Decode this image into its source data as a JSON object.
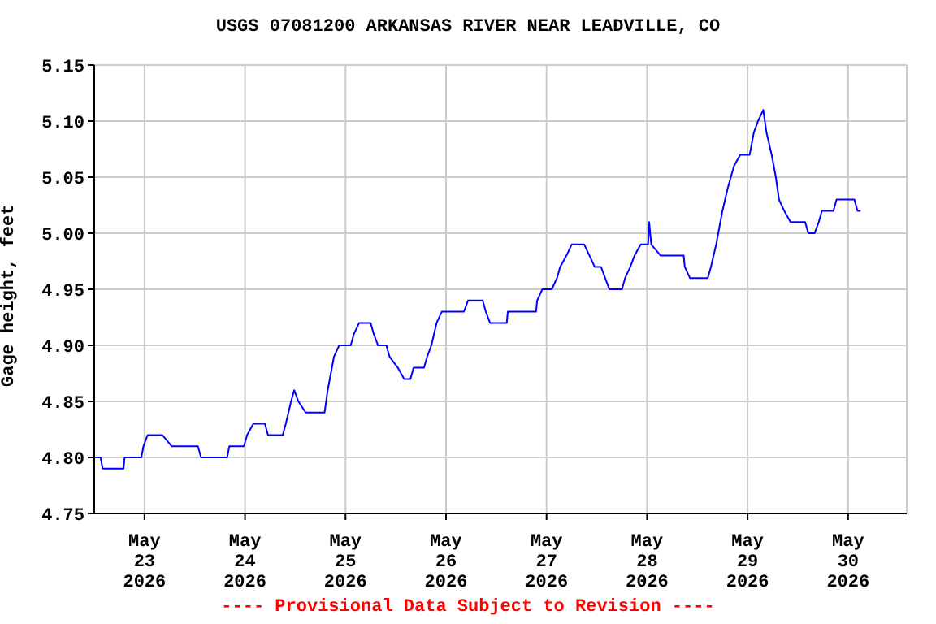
{
  "chart_data": {
    "type": "line",
    "title": "USGS 07081200 ARKANSAS RIVER NEAR LEADVILLE, CO",
    "ylabel": "Gage height, feet",
    "annotations": [
      "---- Provisional Data Subject to Revision ----"
    ],
    "xlim": [
      "2026-05-22T12:00",
      "2026-05-30T14:00"
    ],
    "xticks": [
      {
        "value": "2026-05-23",
        "label": "May\n23\n2026"
      },
      {
        "value": "2026-05-24",
        "label": "May\n24\n2026"
      },
      {
        "value": "2026-05-25",
        "label": "May\n25\n2026"
      },
      {
        "value": "2026-05-26",
        "label": "May\n26\n2026"
      },
      {
        "value": "2026-05-27",
        "label": "May\n27\n2026"
      },
      {
        "value": "2026-05-28",
        "label": "May\n28\n2026"
      },
      {
        "value": "2026-05-29",
        "label": "May\n29\n2026"
      },
      {
        "value": "2026-05-30",
        "label": "May\n30\n2026"
      }
    ],
    "ylim": [
      4.75,
      5.15
    ],
    "yticks": [
      {
        "value": 4.75,
        "label": "4.75"
      },
      {
        "value": 4.8,
        "label": "4.80"
      },
      {
        "value": 4.85,
        "label": "4.85"
      },
      {
        "value": 4.9,
        "label": "4.90"
      },
      {
        "value": 4.95,
        "label": "4.95"
      },
      {
        "value": 5.0,
        "label": "5.00"
      },
      {
        "value": 5.05,
        "label": "5.05"
      },
      {
        "value": 5.1,
        "label": "5.10"
      },
      {
        "value": 5.15,
        "label": "5.15"
      }
    ],
    "grid": true,
    "series": [
      {
        "color": "#0000ff",
        "x": [
          "2026-05-22T12:15",
          "2026-05-22T13:30",
          "2026-05-22T14:00",
          "2026-05-22T19:00",
          "2026-05-22T19:15",
          "2026-05-22T23:15",
          "2026-05-22T23:45",
          "2026-05-23T00:45",
          "2026-05-23T04:15",
          "2026-05-23T06:30",
          "2026-05-23T12:45",
          "2026-05-23T13:30",
          "2026-05-23T19:45",
          "2026-05-23T20:15",
          "2026-05-23T23:45",
          "2026-05-24T00:30",
          "2026-05-24T02:00",
          "2026-05-24T04:45",
          "2026-05-24T05:30",
          "2026-05-24T09:00",
          "2026-05-24T09:45",
          "2026-05-24T11:00",
          "2026-05-24T11:45",
          "2026-05-24T12:45",
          "2026-05-24T14:30",
          "2026-05-24T19:00",
          "2026-05-24T19:45",
          "2026-05-24T21:15",
          "2026-05-24T22:30",
          "2026-05-25T01:15",
          "2026-05-25T02:00",
          "2026-05-25T03:15",
          "2026-05-25T06:00",
          "2026-05-25T06:45",
          "2026-05-25T07:45",
          "2026-05-25T09:45",
          "2026-05-25T10:30",
          "2026-05-25T12:30",
          "2026-05-25T14:00",
          "2026-05-25T15:30",
          "2026-05-25T16:15",
          "2026-05-25T18:45",
          "2026-05-25T19:30",
          "2026-05-25T20:30",
          "2026-05-25T21:45",
          "2026-05-25T23:00",
          "2026-05-26T04:15",
          "2026-05-26T05:15",
          "2026-05-26T08:45",
          "2026-05-26T09:30",
          "2026-05-26T10:30",
          "2026-05-26T14:30",
          "2026-05-26T14:45",
          "2026-05-26T21:30",
          "2026-05-26T21:45",
          "2026-05-26T23:00",
          "2026-05-27T01:15",
          "2026-05-27T02:30",
          "2026-05-27T03:15",
          "2026-05-27T04:45",
          "2026-05-27T06:00",
          "2026-05-27T09:00",
          "2026-05-27T10:15",
          "2026-05-27T11:30",
          "2026-05-27T13:00",
          "2026-05-27T14:00",
          "2026-05-27T15:00",
          "2026-05-27T18:00",
          "2026-05-27T18:45",
          "2026-05-27T20:00",
          "2026-05-27T21:00",
          "2026-05-27T22:30",
          "2026-05-28T00:15",
          "2026-05-28T00:30",
          "2026-05-28T01:00",
          "2026-05-28T03:15",
          "2026-05-28T08:45",
          "2026-05-28T09:00",
          "2026-05-28T10:15",
          "2026-05-28T14:30",
          "2026-05-28T15:15",
          "2026-05-28T16:30",
          "2026-05-28T18:00",
          "2026-05-28T19:15",
          "2026-05-28T20:45",
          "2026-05-28T22:15",
          "2026-05-29T00:30",
          "2026-05-29T01:30",
          "2026-05-29T02:30",
          "2026-05-29T03:45",
          "2026-05-29T04:30",
          "2026-05-29T05:45",
          "2026-05-29T06:45",
          "2026-05-29T07:30",
          "2026-05-29T08:45",
          "2026-05-29T10:15",
          "2026-05-29T13:45",
          "2026-05-29T14:30",
          "2026-05-29T16:00",
          "2026-05-29T17:00",
          "2026-05-29T17:45",
          "2026-05-29T20:30",
          "2026-05-29T21:15",
          "2026-05-30T01:30",
          "2026-05-30T02:15",
          "2026-05-30T03:00"
        ],
        "values": [
          4.8,
          4.8,
          4.79,
          4.79,
          4.8,
          4.8,
          4.81,
          4.82,
          4.82,
          4.81,
          4.81,
          4.8,
          4.8,
          4.81,
          4.81,
          4.82,
          4.83,
          4.83,
          4.82,
          4.82,
          4.83,
          4.85,
          4.86,
          4.85,
          4.84,
          4.84,
          4.86,
          4.89,
          4.9,
          4.9,
          4.91,
          4.92,
          4.92,
          4.91,
          4.9,
          4.9,
          4.89,
          4.88,
          4.87,
          4.87,
          4.88,
          4.88,
          4.89,
          4.9,
          4.92,
          4.93,
          4.93,
          4.94,
          4.94,
          4.93,
          4.92,
          4.92,
          4.93,
          4.93,
          4.94,
          4.95,
          4.95,
          4.96,
          4.97,
          4.98,
          4.99,
          4.99,
          4.98,
          4.97,
          4.97,
          4.96,
          4.95,
          4.95,
          4.96,
          4.97,
          4.98,
          4.99,
          4.99,
          5.01,
          4.99,
          4.98,
          4.98,
          4.97,
          4.96,
          4.96,
          4.97,
          4.99,
          5.02,
          5.04,
          5.06,
          5.07,
          5.07,
          5.09,
          5.1,
          5.11,
          5.09,
          5.07,
          5.05,
          5.03,
          5.02,
          5.01,
          5.01,
          5.0,
          5.0,
          5.01,
          5.02,
          5.02,
          5.03,
          5.03,
          5.02,
          5.02
        ]
      }
    ]
  }
}
